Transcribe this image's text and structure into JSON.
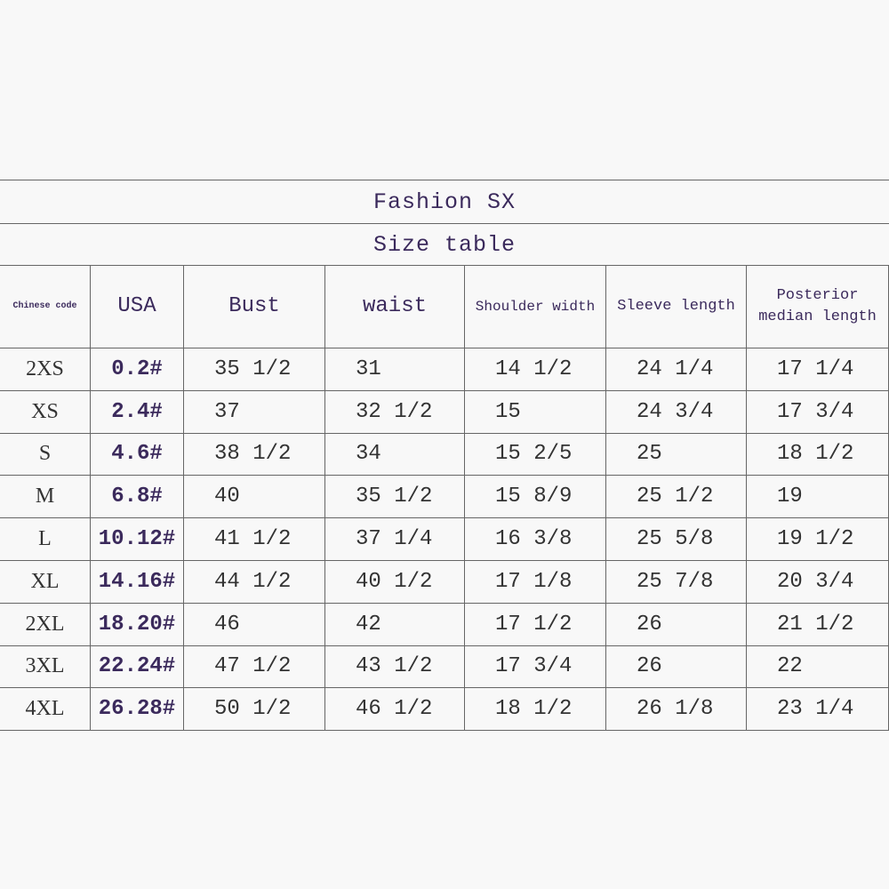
{
  "header": {
    "title": "Fashion SX",
    "subtitle": "Size table"
  },
  "table": {
    "columns": [
      "Chinese code",
      "USA",
      "Bust",
      "waist",
      "Shoulder width",
      "Sleeve length",
      "Posterior median length"
    ],
    "rows": [
      [
        "2XS",
        "0.2#",
        "35 1/2",
        "31",
        "14 1/2",
        "24 1/4",
        "17 1/4"
      ],
      [
        "XS",
        "2.4#",
        "37",
        "32 1/2",
        "15",
        "24 3/4",
        "17 3/4"
      ],
      [
        "S",
        "4.6#",
        "38 1/2",
        "34",
        "15 2/5",
        "25",
        "18 1/2"
      ],
      [
        "M",
        "6.8#",
        "40",
        "35 1/2",
        "15 8/9",
        "25 1/2",
        "19"
      ],
      [
        "L",
        "10.12#",
        "41 1/2",
        "37 1/4",
        "16 3/8",
        "25 5/8",
        "19 1/2"
      ],
      [
        "XL",
        "14.16#",
        "44 1/2",
        "40 1/2",
        "17 1/8",
        "25 7/8",
        "20 3/4"
      ],
      [
        "2XL",
        "18.20#",
        "46",
        "42",
        "17 1/2",
        "26",
        "21 1/2"
      ],
      [
        "3XL",
        "22.24#",
        "47 1/2",
        "43 1/2",
        "17 3/4",
        "26",
        "22"
      ],
      [
        "4XL",
        "26.28#",
        "50 1/2",
        "46 1/2",
        "18 1/2",
        "26 1/8",
        "23 1/4"
      ]
    ]
  }
}
